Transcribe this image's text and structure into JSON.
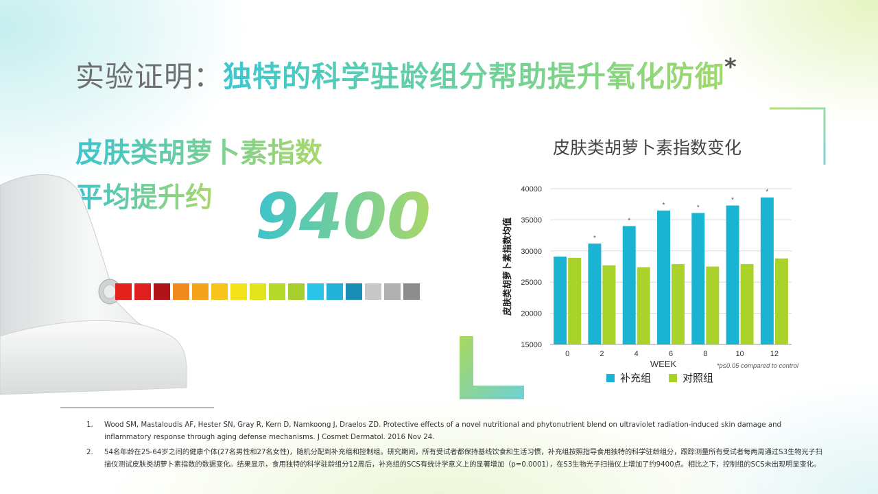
{
  "title": {
    "prefix": "实验证明：",
    "highlight": "独特的科学驻龄组分帮助提升氧化防御",
    "asterisk": "*"
  },
  "headline": {
    "line1": "皮肤类胡萝卜素指数",
    "line2": "平均提升约",
    "value": "9400"
  },
  "colors": {
    "supplement": "#1ab3d2",
    "control": "#a9d22a"
  },
  "swatches": [
    "#e2211c",
    "#e01e1e",
    "#b0121a",
    "#f08a1c",
    "#f4a31b",
    "#f7c51a",
    "#f4e21a",
    "#e3e41e",
    "#b5d92a",
    "#a4cf2c",
    "#2bc3e8",
    "#23b2d8",
    "#1a8db5",
    "#c8c8c8",
    "#b0b0b0",
    "#8d8d8d"
  ],
  "chart_data": {
    "type": "bar",
    "title": "皮肤类胡萝卜素指数变化",
    "xlabel": "WEEK",
    "ylabel": "皮肤类胡萝卜素指数均值",
    "categories": [
      "0",
      "2",
      "4",
      "6",
      "8",
      "10",
      "12"
    ],
    "ylim": [
      15000,
      40000
    ],
    "yticks": [
      "15000",
      "20000",
      "25000",
      "30000",
      "35000",
      "40000"
    ],
    "series": [
      {
        "name": "补充组",
        "values": [
          29100,
          31200,
          34000,
          36500,
          36100,
          37300,
          38600
        ]
      },
      {
        "name": "对照组",
        "values": [
          28900,
          27700,
          27400,
          27900,
          27500,
          27900,
          28800
        ]
      }
    ],
    "significant": [
      false,
      true,
      true,
      true,
      true,
      true,
      true
    ],
    "sig_marker": "*",
    "annotation": "*p≤0.05 compared to control",
    "grid": true,
    "legend": "bottom"
  },
  "footnotes": [
    {
      "num": "1.",
      "text": "Wood SM, Mastaloudis AF, Hester SN, Gray R, Kern D, Namkoong J, Draelos ZD. Protective effects of a novel nutritional and phytonutrient blend on ultraviolet radiation-induced skin damage and inflammatory response through aging defense mechanisms. J Cosmet Dermatol. 2016 Nov 24."
    },
    {
      "num": "2.",
      "text": "54名年龄在25-64岁之间的健康个体(27名男性和27名女性)，随机分配到补充组和控制组。研究期间，所有受试者都保持基线饮食和生活习惯，补充组按照指导食用独特的科学驻龄组分，跟踪测量所有受试者每两周通过S3生物光子扫描仪测试皮肤类胡萝卜素指数的数据变化。结果显示，食用独特的科学驻龄组分12周后，补充组的SCS有统计学意义上的显著增加（p=0.0001），在S3生物光子扫描仪上增加了约9400点。相比之下，控制组的SCS未出现明显变化。"
    }
  ]
}
